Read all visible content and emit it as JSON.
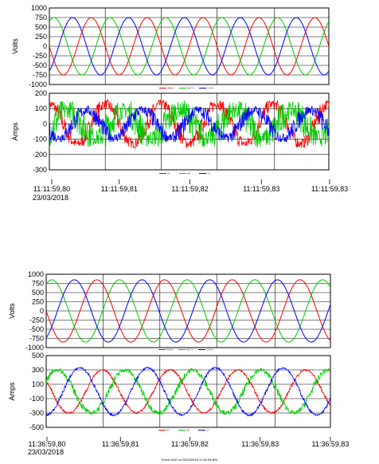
{
  "colors": {
    "phase_a": "#ff0000",
    "phase_b": "#00cc00",
    "phase_c": "#0000ff",
    "grid": "#000000"
  },
  "chart_data": [
    {
      "type": "line",
      "ylabel": "Volts",
      "yticks": [
        "1000",
        "750",
        "500",
        "250",
        "0",
        "-250",
        "-500",
        "-750",
        "-1000"
      ],
      "ylim": [
        -1000,
        1000
      ],
      "series": [
        {
          "name": "A-B V",
          "amplitude": 750,
          "phase_deg": 180,
          "cycles": 5.0
        },
        {
          "name": "B-C V",
          "amplitude": 750,
          "phase_deg": 60,
          "cycles": 5.0
        },
        {
          "name": "C-A V",
          "amplitude": 750,
          "phase_deg": -60,
          "cycles": 5.0
        }
      ]
    },
    {
      "type": "line",
      "ylabel": "Amps",
      "yticks": [
        "200",
        "100",
        "0",
        "-100",
        "-200",
        "-300"
      ],
      "ylim": [
        -300,
        200
      ],
      "series": [
        {
          "name": "A I",
          "amplitude": 130,
          "phase_deg": 90,
          "cycles": 5.0,
          "noise": 60
        },
        {
          "name": "B I",
          "amplitude": 90,
          "phase_deg": -30,
          "cycles": 5.0,
          "noise": 110
        },
        {
          "name": "C I",
          "amplitude": 90,
          "phase_deg": 210,
          "cycles": 5.0,
          "noise": 60
        }
      ],
      "xticks": [
        "11:11:59,80",
        "11:11:59,81",
        "11:11:59,82",
        "11:11:59,83",
        "11:11:59,83"
      ],
      "date": "23/03/2018"
    },
    {
      "type": "line",
      "ylabel": "Volts",
      "yticks": [
        "1000",
        "750",
        "500",
        "250",
        "0",
        "-250",
        "-500",
        "-750",
        "-1000"
      ],
      "ylim": [
        -1000,
        1000
      ],
      "series": [
        {
          "name": "A-B V",
          "amplitude": 850,
          "phase_deg": 180,
          "cycles": 4.2
        },
        {
          "name": "B-C V",
          "amplitude": 850,
          "phase_deg": 60,
          "cycles": 4.2
        },
        {
          "name": "C-A V",
          "amplitude": 850,
          "phase_deg": -60,
          "cycles": 4.2
        }
      ]
    },
    {
      "type": "line",
      "ylabel": "Amps",
      "yticks": [
        "500",
        "300",
        "100",
        "-100",
        "-300",
        "-500"
      ],
      "ylim": [
        -500,
        500
      ],
      "series": [
        {
          "name": "A I",
          "amplitude": 300,
          "phase_deg": 150,
          "cycles": 4.2,
          "noise": 25
        },
        {
          "name": "B I",
          "amplitude": 300,
          "phase_deg": 30,
          "cycles": 4.2,
          "noise": 55
        },
        {
          "name": "C I",
          "amplitude": 330,
          "phase_deg": -90,
          "cycles": 4.2,
          "noise": 25
        }
      ],
      "xticks": [
        "11:36:59,80",
        "11:36:59,81",
        "11:36:59,82",
        "11:36:59,83",
        "11:36:59,83"
      ],
      "date": "23/03/2018"
    }
  ],
  "caption": "Event #101 at 23/03/2018 11:36:59,800"
}
